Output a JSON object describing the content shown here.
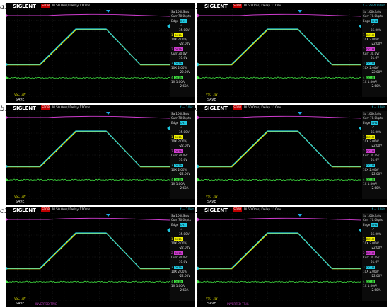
{
  "panels": [
    {
      "label": "a1",
      "trigger": "",
      "bottom_status": ""
    },
    {
      "label": "a2",
      "trigger": "f = 23.4000Hz",
      "bottom_status": ""
    },
    {
      "label": "b1",
      "trigger": "f = 10Hz",
      "bottom_status": ""
    },
    {
      "label": "b2",
      "trigger": "f = 10Hz",
      "bottom_status": ""
    },
    {
      "label": "c1",
      "trigger": "f = 10Hz",
      "bottom_status": "INVERTED TRIG"
    },
    {
      "label": "c2",
      "trigger": "f = 10Hz",
      "bottom_status": "INVERTED TRIG"
    }
  ],
  "scope": {
    "brand": "SIGLENT",
    "stop": "STOP",
    "timebase": "M 50.0ms/ Delay 110ms",
    "save": "SAVE"
  },
  "side": {
    "sa": "Sa 100kSa/s",
    "curr": "Curr 70.0kpts",
    "edge_label": "Edge",
    "edge_ch": "CH1",
    "slope": "↗",
    "level": "35.00V",
    "ch_rows": [
      {
        "num": "1",
        "tag": "DC1M",
        "probe": "10X",
        "scale": "2.00V/",
        "offset": "-22.00V"
      },
      {
        "num": "2",
        "tag": "DC1M",
        "probe": "Curr",
        "scale": "30.0V/",
        "offset": "51.6V"
      },
      {
        "num": "3",
        "tag": "DC1M",
        "probe": "10X",
        "scale": "2.00V/",
        "offset": "-22.00V"
      },
      {
        "num": "4",
        "tag": "DC1M",
        "probe": "1X",
        "scale": "1.00A/",
        "offset": "-2.60A"
      }
    ],
    "ch_colors": [
      "#f0f000",
      "#d03cd0",
      "#20c8e0",
      "#40e040"
    ]
  },
  "bottom_hint": "VSC_3W"
}
